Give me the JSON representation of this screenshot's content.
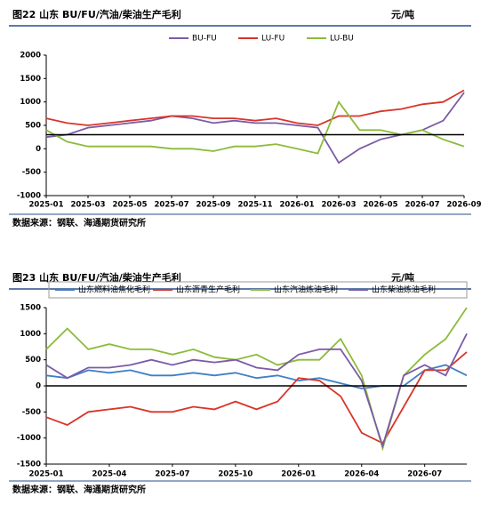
{
  "chart_data": [
    {
      "type": "line",
      "title": "图22  山东 BU/FU/汽油/柴油生产毛利",
      "unit": "元/吨",
      "source": "数据来源：钢联、海通期货研究所",
      "x": [
        "2025-01",
        "2025-02",
        "2025-03",
        "2025-04",
        "2025-05",
        "2025-06",
        "2025-07",
        "2025-08",
        "2025-09",
        "2025-10",
        "2025-11",
        "2025-12",
        "2026-01",
        "2026-02",
        "2026-03",
        "2026-04",
        "2026-05",
        "2026-06",
        "2026-07",
        "2026-08",
        "2026-09"
      ],
      "xticks": [
        "2025-01",
        "2025-03",
        "2025-05",
        "2025-07",
        "2025-09",
        "2025-11",
        "2026-01",
        "2026-03",
        "2026-05",
        "2026-07",
        "2026-09"
      ],
      "ylim": [
        -1000,
        2000
      ],
      "yticks": [
        -1000,
        -500,
        0,
        500,
        1000,
        1500,
        2000
      ],
      "reference_line": 300,
      "series": [
        {
          "name": "BU-FU",
          "color": "#7b5aa6",
          "values": [
            250,
            300,
            450,
            500,
            550,
            600,
            700,
            650,
            550,
            600,
            550,
            550,
            500,
            450,
            -300,
            0,
            200,
            300,
            400,
            600,
            1200
          ]
        },
        {
          "name": "LU-FU",
          "color": "#d8352a",
          "values": [
            650,
            550,
            500,
            550,
            600,
            650,
            700,
            700,
            650,
            650,
            600,
            650,
            550,
            500,
            700,
            700,
            800,
            850,
            950,
            1000,
            1250
          ]
        },
        {
          "name": "LU-BU",
          "color": "#8cbb3a",
          "values": [
            400,
            150,
            50,
            50,
            50,
            50,
            0,
            0,
            -50,
            50,
            50,
            100,
            0,
            -100,
            1000,
            400,
            400,
            300,
            400,
            200,
            50
          ]
        }
      ]
    },
    {
      "type": "line",
      "title": "图23  山东 BU/FU/汽油/柴油生产毛利",
      "unit": "元/吨",
      "source": "数据来源：钢联、海通期货研究所",
      "x": [
        "2025-01",
        "2025-02",
        "2025-03",
        "2025-04",
        "2025-05",
        "2025-06",
        "2025-07",
        "2025-08",
        "2025-09",
        "2025-10",
        "2025-11",
        "2025-12",
        "2026-01",
        "2026-02",
        "2026-03",
        "2026-04",
        "2026-05",
        "2026-06",
        "2026-07",
        "2026-08",
        "2026-09"
      ],
      "xticks": [
        "2025-01",
        "2025-04",
        "2025-07",
        "2025-10",
        "2026-01",
        "2026-04",
        "2026-07"
      ],
      "ylim": [
        -1500,
        1500
      ],
      "yticks": [
        -1500,
        -1000,
        -500,
        0,
        500,
        1000,
        1500
      ],
      "reference_line": 0,
      "series": [
        {
          "name": "山东燃料油焦化毛利",
          "color": "#3f7fc4",
          "values": [
            200,
            150,
            300,
            250,
            300,
            200,
            200,
            250,
            200,
            250,
            150,
            200,
            100,
            150,
            50,
            -50,
            0,
            0,
            300,
            400,
            200
          ]
        },
        {
          "name": "山东沥青生产毛利",
          "color": "#d8352a",
          "values": [
            -600,
            -750,
            -500,
            -450,
            -400,
            -500,
            -500,
            -400,
            -450,
            -300,
            -450,
            -300,
            150,
            100,
            -200,
            -900,
            -1100,
            -400,
            300,
            300,
            650
          ]
        },
        {
          "name": "山东汽油炼油毛利",
          "color": "#8cbb3a",
          "values": [
            700,
            1100,
            700,
            800,
            700,
            700,
            600,
            700,
            550,
            500,
            600,
            400,
            500,
            500,
            900,
            200,
            -1200,
            200,
            600,
            900,
            1500
          ]
        },
        {
          "name": "山东柴油炼油毛利",
          "color": "#7b5aa6",
          "values": [
            400,
            150,
            350,
            350,
            400,
            500,
            400,
            500,
            450,
            500,
            350,
            300,
            600,
            700,
            700,
            100,
            -1150,
            200,
            400,
            200,
            1000
          ]
        }
      ]
    }
  ]
}
